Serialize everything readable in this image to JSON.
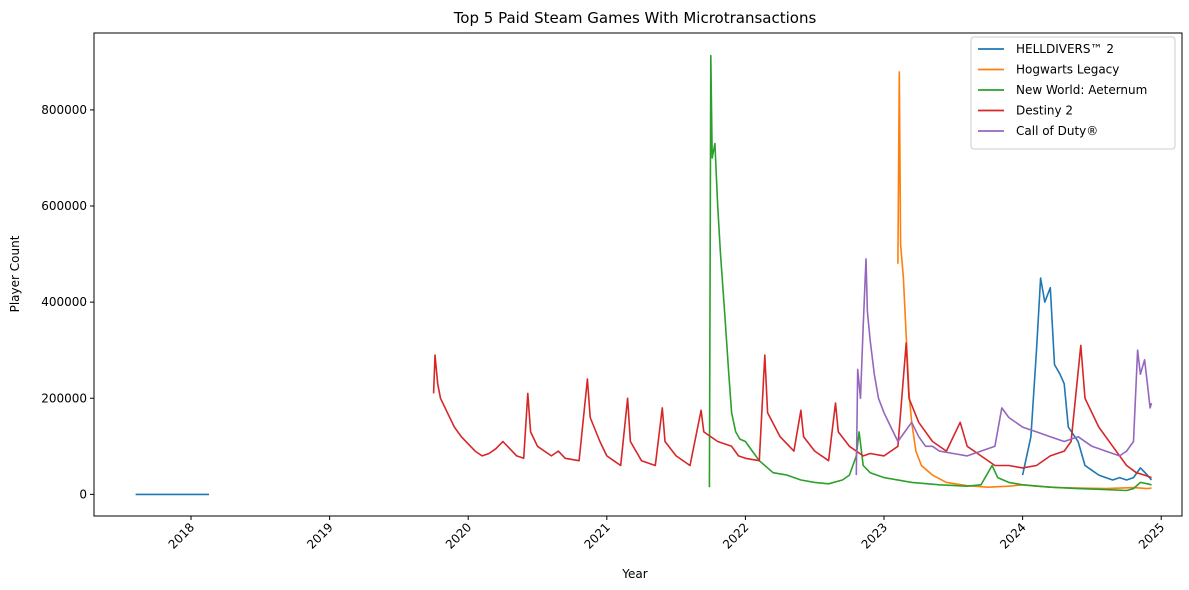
{
  "chart_data": {
    "type": "line",
    "title": "Top 5 Paid Steam Games With Microtransactions",
    "xlabel": "Year",
    "ylabel": "Player Count",
    "xlim": [
      2017.3,
      2025.15
    ],
    "ylim": [
      -45000,
      960000
    ],
    "x_ticks": [
      "2018",
      "2019",
      "2020",
      "2021",
      "2022",
      "2023",
      "2024",
      "2025"
    ],
    "y_ticks": [
      "0",
      "200000",
      "400000",
      "600000",
      "800000"
    ],
    "legend_position": "top-right",
    "grid": false,
    "series": [
      {
        "name": "HELLDIVERS™ 2",
        "color": "#1f77b4",
        "points": [
          [
            2017.6,
            0
          ],
          [
            2018.13,
            0
          ],
          [
            null,
            null
          ],
          [
            2024.0,
            40000
          ],
          [
            2024.06,
            120000
          ],
          [
            2024.1,
            300000
          ],
          [
            2024.13,
            450000
          ],
          [
            2024.16,
            400000
          ],
          [
            2024.2,
            430000
          ],
          [
            2024.23,
            270000
          ],
          [
            2024.27,
            250000
          ],
          [
            2024.3,
            230000
          ],
          [
            2024.33,
            140000
          ],
          [
            2024.4,
            110000
          ],
          [
            2024.45,
            60000
          ],
          [
            2024.5,
            50000
          ],
          [
            2024.55,
            40000
          ],
          [
            2024.6,
            35000
          ],
          [
            2024.65,
            30000
          ],
          [
            2024.7,
            35000
          ],
          [
            2024.75,
            30000
          ],
          [
            2024.8,
            35000
          ],
          [
            2024.85,
            55000
          ],
          [
            2024.9,
            40000
          ],
          [
            2024.93,
            30000
          ]
        ]
      },
      {
        "name": "Hogwarts Legacy",
        "color": "#ff7f0e",
        "points": [
          [
            2023.1,
            480000
          ],
          [
            2023.11,
            879000
          ],
          [
            2023.12,
            520000
          ],
          [
            2023.14,
            450000
          ],
          [
            2023.16,
            330000
          ],
          [
            2023.18,
            210000
          ],
          [
            2023.2,
            150000
          ],
          [
            2023.23,
            90000
          ],
          [
            2023.27,
            60000
          ],
          [
            2023.35,
            40000
          ],
          [
            2023.45,
            25000
          ],
          [
            2023.6,
            18000
          ],
          [
            2023.75,
            15000
          ],
          [
            2023.9,
            17000
          ],
          [
            2024.0,
            20000
          ],
          [
            2024.1,
            17000
          ],
          [
            2024.25,
            14000
          ],
          [
            2024.4,
            13000
          ],
          [
            2024.6,
            12000
          ],
          [
            2024.8,
            14000
          ],
          [
            2024.9,
            12000
          ],
          [
            2024.93,
            13000
          ]
        ]
      },
      {
        "name": "New World: Aeternum",
        "color": "#2ca02c",
        "points": [
          [
            2021.74,
            15000
          ],
          [
            2021.75,
            913000
          ],
          [
            2021.76,
            700000
          ],
          [
            2021.78,
            730000
          ],
          [
            2021.8,
            600000
          ],
          [
            2021.82,
            500000
          ],
          [
            2021.85,
            380000
          ],
          [
            2021.88,
            250000
          ],
          [
            2021.9,
            170000
          ],
          [
            2021.93,
            130000
          ],
          [
            2021.96,
            115000
          ],
          [
            2022.0,
            110000
          ],
          [
            2022.05,
            90000
          ],
          [
            2022.1,
            70000
          ],
          [
            2022.2,
            45000
          ],
          [
            2022.3,
            40000
          ],
          [
            2022.4,
            30000
          ],
          [
            2022.5,
            25000
          ],
          [
            2022.6,
            22000
          ],
          [
            2022.7,
            30000
          ],
          [
            2022.75,
            40000
          ],
          [
            2022.8,
            80000
          ],
          [
            2022.82,
            130000
          ],
          [
            2022.85,
            60000
          ],
          [
            2022.9,
            45000
          ],
          [
            2023.0,
            35000
          ],
          [
            2023.2,
            25000
          ],
          [
            2023.4,
            20000
          ],
          [
            2023.6,
            17000
          ],
          [
            2023.7,
            20000
          ],
          [
            2023.78,
            60000
          ],
          [
            2023.82,
            35000
          ],
          [
            2023.9,
            25000
          ],
          [
            2024.0,
            20000
          ],
          [
            2024.2,
            15000
          ],
          [
            2024.4,
            12000
          ],
          [
            2024.6,
            10000
          ],
          [
            2024.75,
            8000
          ],
          [
            2024.8,
            12000
          ],
          [
            2024.85,
            25000
          ],
          [
            2024.9,
            22000
          ],
          [
            2024.93,
            20000
          ]
        ]
      },
      {
        "name": "Destiny 2",
        "color": "#d62728",
        "points": [
          [
            2019.75,
            210000
          ],
          [
            2019.76,
            290000
          ],
          [
            2019.78,
            230000
          ],
          [
            2019.8,
            200000
          ],
          [
            2019.85,
            170000
          ],
          [
            2019.9,
            140000
          ],
          [
            2019.95,
            120000
          ],
          [
            2020.0,
            105000
          ],
          [
            2020.05,
            90000
          ],
          [
            2020.1,
            80000
          ],
          [
            2020.15,
            85000
          ],
          [
            2020.2,
            95000
          ],
          [
            2020.25,
            110000
          ],
          [
            2020.3,
            95000
          ],
          [
            2020.35,
            80000
          ],
          [
            2020.4,
            75000
          ],
          [
            2020.43,
            210000
          ],
          [
            2020.45,
            130000
          ],
          [
            2020.5,
            100000
          ],
          [
            2020.55,
            90000
          ],
          [
            2020.6,
            80000
          ],
          [
            2020.65,
            90000
          ],
          [
            2020.7,
            75000
          ],
          [
            2020.8,
            70000
          ],
          [
            2020.86,
            240000
          ],
          [
            2020.88,
            160000
          ],
          [
            2020.95,
            110000
          ],
          [
            2021.0,
            80000
          ],
          [
            2021.05,
            70000
          ],
          [
            2021.1,
            60000
          ],
          [
            2021.15,
            200000
          ],
          [
            2021.17,
            110000
          ],
          [
            2021.25,
            70000
          ],
          [
            2021.35,
            60000
          ],
          [
            2021.4,
            180000
          ],
          [
            2021.42,
            110000
          ],
          [
            2021.5,
            80000
          ],
          [
            2021.6,
            60000
          ],
          [
            2021.68,
            175000
          ],
          [
            2021.7,
            130000
          ],
          [
            2021.8,
            110000
          ],
          [
            2021.9,
            100000
          ],
          [
            2021.95,
            80000
          ],
          [
            2022.0,
            75000
          ],
          [
            2022.1,
            70000
          ],
          [
            2022.14,
            290000
          ],
          [
            2022.16,
            170000
          ],
          [
            2022.25,
            120000
          ],
          [
            2022.35,
            90000
          ],
          [
            2022.4,
            175000
          ],
          [
            2022.42,
            120000
          ],
          [
            2022.5,
            90000
          ],
          [
            2022.6,
            70000
          ],
          [
            2022.65,
            190000
          ],
          [
            2022.67,
            130000
          ],
          [
            2022.75,
            100000
          ],
          [
            2022.85,
            80000
          ],
          [
            2022.9,
            85000
          ],
          [
            2023.0,
            80000
          ],
          [
            2023.1,
            100000
          ],
          [
            2023.16,
            315000
          ],
          [
            2023.18,
            200000
          ],
          [
            2023.25,
            150000
          ],
          [
            2023.35,
            110000
          ],
          [
            2023.45,
            90000
          ],
          [
            2023.55,
            150000
          ],
          [
            2023.6,
            100000
          ],
          [
            2023.7,
            80000
          ],
          [
            2023.8,
            60000
          ],
          [
            2023.9,
            60000
          ],
          [
            2024.0,
            55000
          ],
          [
            2024.1,
            60000
          ],
          [
            2024.2,
            80000
          ],
          [
            2024.3,
            90000
          ],
          [
            2024.35,
            110000
          ],
          [
            2024.42,
            310000
          ],
          [
            2024.45,
            200000
          ],
          [
            2024.55,
            140000
          ],
          [
            2024.65,
            100000
          ],
          [
            2024.75,
            60000
          ],
          [
            2024.82,
            45000
          ],
          [
            2024.88,
            40000
          ],
          [
            2024.93,
            35000
          ]
        ]
      },
      {
        "name": "Call of Duty®",
        "color": "#9467bd",
        "points": [
          [
            2022.8,
            40000
          ],
          [
            2022.81,
            260000
          ],
          [
            2022.83,
            200000
          ],
          [
            2022.85,
            350000
          ],
          [
            2022.87,
            490000
          ],
          [
            2022.88,
            380000
          ],
          [
            2022.9,
            320000
          ],
          [
            2022.93,
            250000
          ],
          [
            2022.96,
            200000
          ],
          [
            2023.0,
            170000
          ],
          [
            2023.05,
            140000
          ],
          [
            2023.1,
            110000
          ],
          [
            2023.15,
            130000
          ],
          [
            2023.2,
            150000
          ],
          [
            2023.25,
            120000
          ],
          [
            2023.3,
            100000
          ],
          [
            2023.35,
            100000
          ],
          [
            2023.4,
            90000
          ],
          [
            2023.5,
            85000
          ],
          [
            2023.6,
            80000
          ],
          [
            2023.7,
            90000
          ],
          [
            2023.8,
            100000
          ],
          [
            2023.85,
            180000
          ],
          [
            2023.9,
            160000
          ],
          [
            2024.0,
            140000
          ],
          [
            2024.1,
            130000
          ],
          [
            2024.2,
            120000
          ],
          [
            2024.3,
            110000
          ],
          [
            2024.4,
            120000
          ],
          [
            2024.5,
            100000
          ],
          [
            2024.6,
            90000
          ],
          [
            2024.7,
            80000
          ],
          [
            2024.75,
            90000
          ],
          [
            2024.8,
            110000
          ],
          [
            2024.83,
            300000
          ],
          [
            2024.85,
            250000
          ],
          [
            2024.88,
            280000
          ],
          [
            2024.9,
            230000
          ],
          [
            2024.92,
            180000
          ],
          [
            2024.93,
            190000
          ]
        ]
      }
    ]
  }
}
